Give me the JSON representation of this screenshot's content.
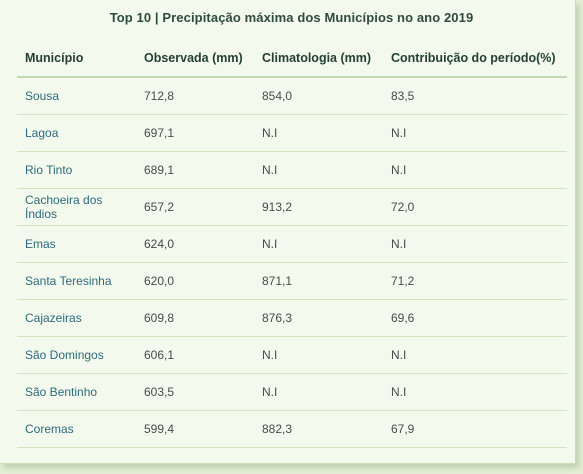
{
  "title": "Top 10 | Precipitação máxima dos Municípios no ano 2019",
  "columns": [
    "Município",
    "Observada (mm)",
    "Climatologia (mm)",
    "Contribuição do período(%)"
  ],
  "rows": [
    [
      "Sousa",
      "712,8",
      "854,0",
      "83,5"
    ],
    [
      "Lagoa",
      "697,1",
      "N.I",
      "N.I"
    ],
    [
      "Rio Tinto",
      "689,1",
      "N.I",
      "N.I"
    ],
    [
      "Cachoeira dos Índios",
      "657,2",
      "913,2",
      "72,0"
    ],
    [
      "Emas",
      "624,0",
      "N.I",
      "N.I"
    ],
    [
      "Santa Teresinha",
      "620,0",
      "871,1",
      "71,2"
    ],
    [
      "Cajazeiras",
      "609,8",
      "876,3",
      "69,6"
    ],
    [
      "São Domingos",
      "606,1",
      "N.I",
      "N.I"
    ],
    [
      "São Bentinho",
      "603,5",
      "N.I",
      "N.I"
    ],
    [
      "Coremas",
      "599,4",
      "882,3",
      "67,9"
    ]
  ]
}
